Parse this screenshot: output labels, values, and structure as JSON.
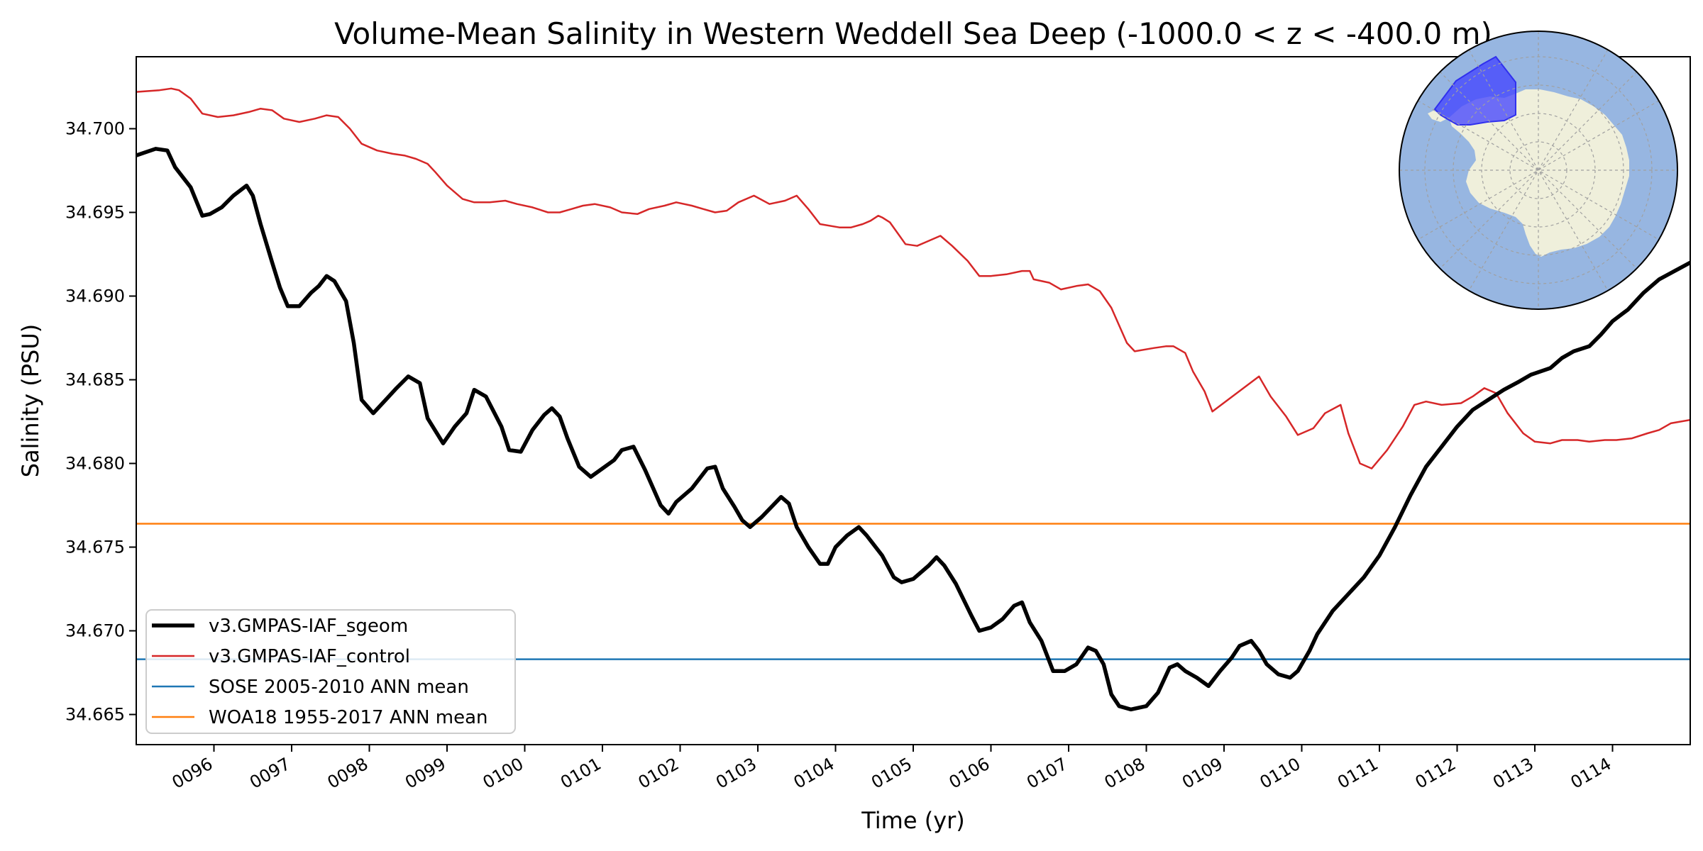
{
  "chart_data": {
    "type": "line",
    "title": "Volume-Mean Salinity in Western Weddell Sea Deep (-1000.0 < z < -400.0 m)",
    "xlabel": "Time (yr)",
    "ylabel": "Salinity (PSU)",
    "xlim": [
      95.0,
      115.0
    ],
    "ylim": [
      34.6632,
      34.7043
    ],
    "x_ticks": [
      96,
      97,
      98,
      99,
      100,
      101,
      102,
      103,
      104,
      105,
      106,
      107,
      108,
      109,
      110,
      111,
      112,
      113,
      114
    ],
    "x_tick_labels": [
      "0096",
      "0097",
      "0098",
      "0099",
      "0100",
      "0101",
      "0102",
      "0103",
      "0104",
      "0105",
      "0106",
      "0107",
      "0108",
      "0109",
      "0110",
      "0111",
      "0112",
      "0113",
      "0114"
    ],
    "y_ticks": [
      34.665,
      34.67,
      34.675,
      34.68,
      34.685,
      34.69,
      34.695,
      34.7
    ],
    "y_tick_labels": [
      "34.665",
      "34.670",
      "34.675",
      "34.680",
      "34.685",
      "34.690",
      "34.695",
      "34.700"
    ],
    "grid": false,
    "legend_position": "lower-left",
    "series": [
      {
        "name": "v3.GMPAS-IAF_sgeom",
        "color": "#000000",
        "kind": "line",
        "x": [
          95.0,
          95.25,
          95.4,
          95.5,
          95.7,
          95.85,
          95.95,
          96.1,
          96.25,
          96.42,
          96.5,
          96.6,
          96.75,
          96.85,
          96.95,
          97.1,
          97.25,
          97.35,
          97.45,
          97.55,
          97.7,
          97.8,
          97.9,
          98.05,
          98.25,
          98.35,
          98.5,
          98.65,
          98.75,
          98.95,
          99.1,
          99.25,
          99.35,
          99.5,
          99.7,
          99.8,
          99.95,
          100.1,
          100.25,
          100.35,
          100.45,
          100.55,
          100.7,
          100.85,
          101.0,
          101.15,
          101.25,
          101.4,
          101.55,
          101.75,
          101.85,
          101.95,
          102.15,
          102.35,
          102.45,
          102.55,
          102.7,
          102.8,
          102.9,
          103.05,
          103.3,
          103.4,
          103.5,
          103.65,
          103.8,
          103.9,
          104.0,
          104.15,
          104.3,
          104.4,
          104.6,
          104.75,
          104.85,
          105.0,
          105.2,
          105.3,
          105.4,
          105.55,
          105.75,
          105.85,
          106.0,
          106.15,
          106.3,
          106.4,
          106.5,
          106.65,
          106.8,
          106.95,
          107.1,
          107.25,
          107.35,
          107.45,
          107.55,
          107.65,
          107.8,
          108.0,
          108.15,
          108.3,
          108.4,
          108.5,
          108.65,
          108.8,
          108.95,
          109.1,
          109.2,
          109.35,
          109.45,
          109.55,
          109.7,
          109.85,
          109.95,
          110.1,
          110.2,
          110.4,
          110.6,
          110.8,
          111.0,
          111.2,
          111.4,
          111.6,
          111.8,
          112.0,
          112.2,
          112.4,
          112.6,
          112.8,
          112.95,
          113.2,
          113.35,
          113.5,
          113.7,
          113.85,
          114.0,
          114.2,
          114.4,
          114.6,
          114.8,
          115.0
        ],
        "values": [
          34.6984,
          34.6988,
          34.6987,
          34.6977,
          34.6965,
          34.6948,
          34.6949,
          34.6953,
          34.696,
          34.6966,
          34.696,
          34.6943,
          34.692,
          34.6905,
          34.6894,
          34.6894,
          34.6902,
          34.6906,
          34.6912,
          34.6909,
          34.6897,
          34.6872,
          34.6838,
          34.683,
          34.684,
          34.6845,
          34.6852,
          34.6848,
          34.6827,
          34.6812,
          34.6822,
          34.683,
          34.6844,
          34.684,
          34.6822,
          34.6808,
          34.6807,
          34.682,
          34.6829,
          34.6833,
          34.6828,
          34.6815,
          34.6798,
          34.6792,
          34.6797,
          34.6802,
          34.6808,
          34.681,
          34.6796,
          34.6775,
          34.677,
          34.6777,
          34.6785,
          34.6797,
          34.6798,
          34.6785,
          34.6774,
          34.6766,
          34.6762,
          34.6768,
          34.678,
          34.6776,
          34.6762,
          34.675,
          34.674,
          34.674,
          34.675,
          34.6757,
          34.6762,
          34.6757,
          34.6745,
          34.6732,
          34.6729,
          34.6731,
          34.6739,
          34.6744,
          34.6739,
          34.6728,
          34.6709,
          34.67,
          34.6702,
          34.6707,
          34.6715,
          34.6717,
          34.6705,
          34.6694,
          34.6676,
          34.6676,
          34.668,
          34.669,
          34.6688,
          34.668,
          34.6662,
          34.6655,
          34.6653,
          34.6655,
          34.6663,
          34.6678,
          34.668,
          34.6676,
          34.6672,
          34.6667,
          34.6676,
          34.6684,
          34.6691,
          34.6694,
          34.6688,
          34.668,
          34.6674,
          34.6672,
          34.6676,
          34.6688,
          34.6698,
          34.6712,
          34.6722,
          34.6732,
          34.6745,
          34.6762,
          34.6781,
          34.6798,
          34.681,
          34.6822,
          34.6832,
          34.6838,
          34.6844,
          34.6849,
          34.6853,
          34.6857,
          34.6863,
          34.6867,
          34.687,
          34.6877,
          34.6885,
          34.6892,
          34.6902,
          34.691,
          34.6915,
          34.692
        ]
      },
      {
        "name": "v3.GMPAS-IAF_control",
        "color": "#d62728",
        "kind": "line",
        "x": [
          95.0,
          95.3,
          95.45,
          95.55,
          95.7,
          95.85,
          96.05,
          96.25,
          96.45,
          96.6,
          96.75,
          96.9,
          97.1,
          97.3,
          97.45,
          97.6,
          97.75,
          97.9,
          98.1,
          98.3,
          98.45,
          98.6,
          98.75,
          98.85,
          99.0,
          99.2,
          99.35,
          99.55,
          99.75,
          99.9,
          100.1,
          100.3,
          100.45,
          100.6,
          100.75,
          100.9,
          101.1,
          101.25,
          101.45,
          101.6,
          101.8,
          101.95,
          102.15,
          102.3,
          102.45,
          102.6,
          102.75,
          102.95,
          103.15,
          103.35,
          103.5,
          103.65,
          103.8,
          104.05,
          104.2,
          104.35,
          104.45,
          104.55,
          104.6,
          104.7,
          104.9,
          105.05,
          105.15,
          105.35,
          105.5,
          105.7,
          105.85,
          106.0,
          106.2,
          106.4,
          106.5,
          106.55,
          106.75,
          106.9,
          107.1,
          107.25,
          107.4,
          107.55,
          107.75,
          107.85,
          108.1,
          108.25,
          108.35,
          108.5,
          108.6,
          108.75,
          108.85,
          109.05,
          109.25,
          109.45,
          109.6,
          109.8,
          109.95,
          110.15,
          110.3,
          110.5,
          110.6,
          110.75,
          110.9,
          111.1,
          111.3,
          111.45,
          111.6,
          111.8,
          112.05,
          112.2,
          112.35,
          112.5,
          112.65,
          112.85,
          113.0,
          113.2,
          113.35,
          113.55,
          113.7,
          113.9,
          114.05,
          114.25,
          114.45,
          114.6,
          114.75,
          115.0
        ],
        "values": [
          34.7022,
          34.7023,
          34.7024,
          34.7023,
          34.7018,
          34.7009,
          34.7007,
          34.7008,
          34.701,
          34.7012,
          34.7011,
          34.7006,
          34.7004,
          34.7006,
          34.7008,
          34.7007,
          34.7,
          34.6991,
          34.6987,
          34.6985,
          34.6984,
          34.6982,
          34.6979,
          34.6974,
          34.6966,
          34.6958,
          34.6956,
          34.6956,
          34.6957,
          34.6955,
          34.6953,
          34.695,
          34.695,
          34.6952,
          34.6954,
          34.6955,
          34.6953,
          34.695,
          34.6949,
          34.6952,
          34.6954,
          34.6956,
          34.6954,
          34.6952,
          34.695,
          34.6951,
          34.6956,
          34.696,
          34.6955,
          34.6957,
          34.696,
          34.6952,
          34.6943,
          34.6941,
          34.6941,
          34.6943,
          34.6945,
          34.6948,
          34.6947,
          34.6944,
          34.6931,
          34.693,
          34.6932,
          34.6936,
          34.693,
          34.6921,
          34.6912,
          34.6912,
          34.6913,
          34.6915,
          34.6915,
          34.691,
          34.6908,
          34.6904,
          34.6906,
          34.6907,
          34.6903,
          34.6893,
          34.6872,
          34.6867,
          34.6869,
          34.687,
          34.687,
          34.6866,
          34.6855,
          34.6843,
          34.6831,
          34.6838,
          34.6845,
          34.6852,
          34.684,
          34.6828,
          34.6817,
          34.6821,
          34.683,
          34.6835,
          34.6818,
          34.68,
          34.6797,
          34.6808,
          34.6822,
          34.6835,
          34.6837,
          34.6835,
          34.6836,
          34.684,
          34.6845,
          34.6842,
          34.683,
          34.6818,
          34.6813,
          34.6812,
          34.6814,
          34.6814,
          34.6813,
          34.6814,
          34.6814,
          34.6815,
          34.6818,
          34.682,
          34.6824,
          34.6826
        ]
      },
      {
        "name": "SOSE 2005-2010 ANN mean",
        "color": "#1f77b4",
        "kind": "hline",
        "value": 34.6683
      },
      {
        "name": "WOA18 1955-2017 ANN mean",
        "color": "#ff7f0e",
        "kind": "hline",
        "value": 34.6764
      }
    ],
    "inset_map": {
      "description": "south-polar-stereographic-antarctica",
      "ocean_color": "#97b6e1",
      "land_color": "#efefdb",
      "highlight_color": "#4040ff"
    }
  }
}
